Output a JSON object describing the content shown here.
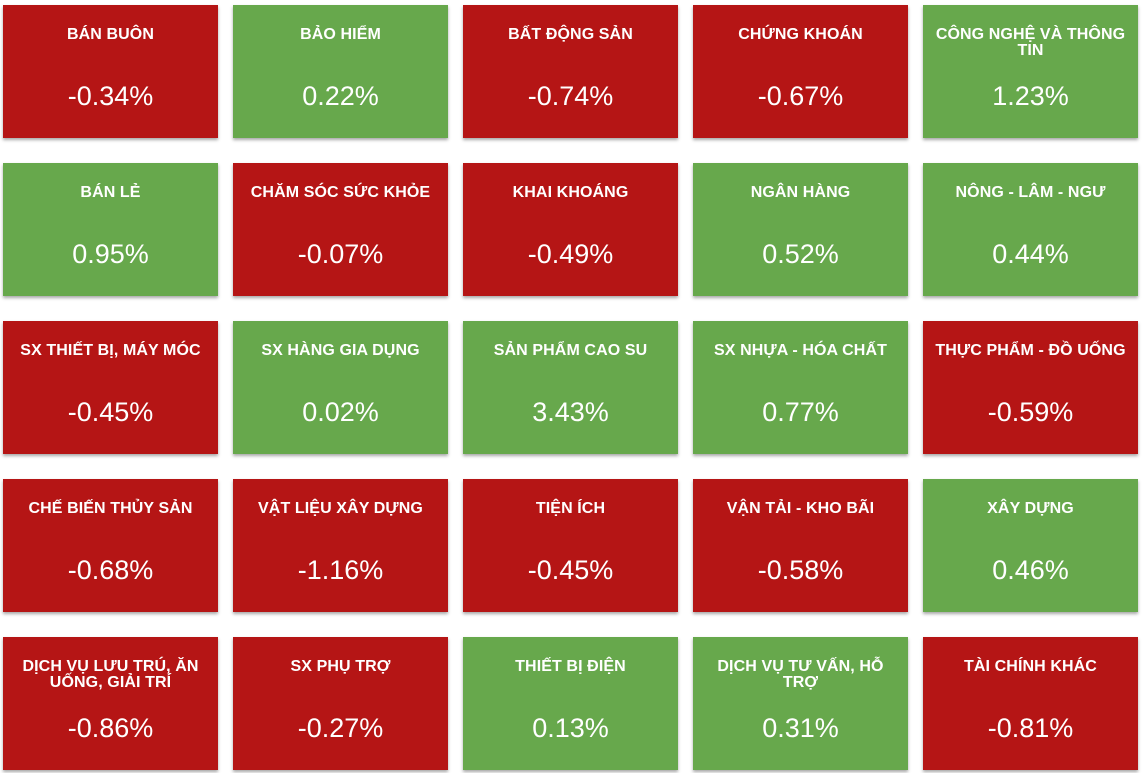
{
  "colors": {
    "negative": "#b51515",
    "positive": "#67a84c",
    "text": "#ffffff"
  },
  "sectors": [
    {
      "name": "BÁN BUÔN",
      "change": "-0.34%",
      "trend": "negative"
    },
    {
      "name": "BẢO HIỂM",
      "change": "0.22%",
      "trend": "positive"
    },
    {
      "name": "BẤT ĐỘNG SẢN",
      "change": "-0.74%",
      "trend": "negative"
    },
    {
      "name": "CHỨNG KHOÁN",
      "change": "-0.67%",
      "trend": "negative"
    },
    {
      "name": "CÔNG NGHỆ VÀ THÔNG TIN",
      "change": "1.23%",
      "trend": "positive"
    },
    {
      "name": "BÁN LẺ",
      "change": "0.95%",
      "trend": "positive"
    },
    {
      "name": "CHĂM SÓC SỨC KHỎE",
      "change": "-0.07%",
      "trend": "negative"
    },
    {
      "name": "KHAI KHOÁNG",
      "change": "-0.49%",
      "trend": "negative"
    },
    {
      "name": "NGÂN HÀNG",
      "change": "0.52%",
      "trend": "positive"
    },
    {
      "name": "NÔNG - LÂM - NGƯ",
      "change": "0.44%",
      "trend": "positive"
    },
    {
      "name": "SX THIẾT BỊ, MÁY MÓC",
      "change": "-0.45%",
      "trend": "negative"
    },
    {
      "name": "SX HÀNG GIA DỤNG",
      "change": "0.02%",
      "trend": "positive"
    },
    {
      "name": "SẢN PHẨM CAO SU",
      "change": "3.43%",
      "trend": "positive"
    },
    {
      "name": "SX NHỰA - HÓA CHẤT",
      "change": "0.77%",
      "trend": "positive"
    },
    {
      "name": "THỰC PHẨM - ĐỒ UỐNG",
      "change": "-0.59%",
      "trend": "negative"
    },
    {
      "name": "CHẾ BIẾN THỦY SẢN",
      "change": "-0.68%",
      "trend": "negative"
    },
    {
      "name": "VẬT LIỆU XÂY DỰNG",
      "change": "-1.16%",
      "trend": "negative"
    },
    {
      "name": "TIỆN ÍCH",
      "change": "-0.45%",
      "trend": "negative"
    },
    {
      "name": "VẬN TẢI - KHO BÃI",
      "change": "-0.58%",
      "trend": "negative"
    },
    {
      "name": "XÂY DỰNG",
      "change": "0.46%",
      "trend": "positive"
    },
    {
      "name": "DỊCH VỤ LƯU TRÚ, ĂN UỐNG, GIẢI TRÍ",
      "change": "-0.86%",
      "trend": "negative"
    },
    {
      "name": "SX PHỤ TRỢ",
      "change": "-0.27%",
      "trend": "negative"
    },
    {
      "name": "THIẾT BỊ ĐIỆN",
      "change": "0.13%",
      "trend": "positive"
    },
    {
      "name": "DỊCH VỤ TƯ VẤN, HỖ TRỢ",
      "change": "0.31%",
      "trend": "positive"
    },
    {
      "name": "TÀI CHÍNH KHÁC",
      "change": "-0.81%",
      "trend": "negative"
    }
  ]
}
